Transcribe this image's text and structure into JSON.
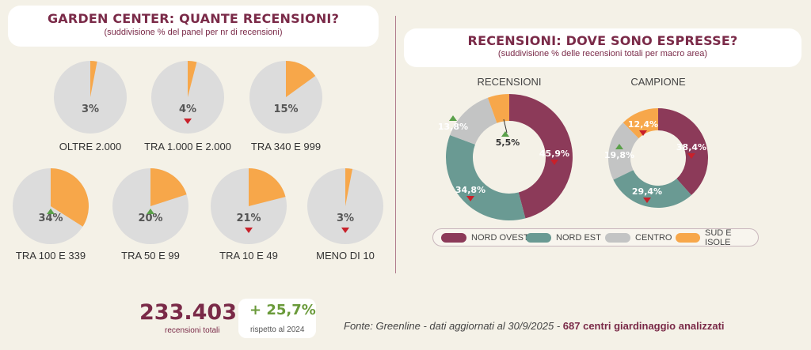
{
  "left_card": {
    "title": "GARDEN CENTER: QUANTE RECENSIONI?",
    "subtitle": "(suddivisione % del panel per nr di recensioni)"
  },
  "right_card": {
    "title": "RECENSIONI: DOVE SONO ESPRESSE?",
    "subtitle": "(suddivisione % delle recensioni totali per macro area)"
  },
  "colors": {
    "highlight": "#f7a74a",
    "pie_bg": "#dcdcdc",
    "nord_ovest": "#8c3a59",
    "nord_est": "#6a9a93",
    "centro": "#c3c4c4",
    "sud_isole": "#f7a74a",
    "up": "#5aa04a",
    "down": "#c8202a",
    "brand": "#7a2a48"
  },
  "chart_data": [
    {
      "type": "pie",
      "title": "GARDEN CENTER: QUANTE RECENSIONI?",
      "subtitle": "(suddivisione % del panel per nr di recensioni)",
      "categories": [
        "OLTRE 2.000",
        "TRA 1.000 E 2.000",
        "TRA 340 E 999",
        "TRA 100 E 339",
        "TRA 50 E 99",
        "TRA 10 E 49",
        "MENO DI 10"
      ],
      "values": [
        3,
        4,
        15,
        34,
        20,
        21,
        3
      ],
      "labels": [
        "3%",
        "4%",
        "15%",
        "34%",
        "20%",
        "21%",
        "3%"
      ],
      "trend": [
        "",
        "down",
        "",
        "up",
        "up",
        "down",
        "down"
      ]
    },
    {
      "type": "pie",
      "title": "RECENSIONI",
      "categories": [
        "NORD OVEST",
        "NORD EST",
        "CENTRO",
        "SUD E ISOLE"
      ],
      "values": [
        45.9,
        34.8,
        13.8,
        5.5
      ],
      "labels": [
        "45,9%",
        "34,8%",
        "13,8%",
        "5,5%"
      ],
      "trend": [
        "down",
        "down",
        "up",
        "up"
      ]
    },
    {
      "type": "pie",
      "title": "CAMPIONE",
      "categories": [
        "NORD OVEST",
        "NORD EST",
        "CENTRO",
        "SUD E ISOLE"
      ],
      "values": [
        38.4,
        29.4,
        19.8,
        12.4
      ],
      "labels": [
        "38,4%",
        "29,4%",
        "19,8%",
        "12,4%"
      ],
      "trend": [
        "down",
        "down",
        "up",
        "down"
      ]
    }
  ],
  "legend": [
    "NORD OVEST",
    "NORD EST",
    "CENTRO",
    "SUD E ISOLE"
  ],
  "totals": {
    "value": "233.403",
    "label": "recensioni totali",
    "growth": "+ 25,7%",
    "growth_label": "rispetto al 2024"
  },
  "source": {
    "text": "Fonte: Greenline - dati aggiornati al 30/9/2025 - ",
    "highlight": "687 centri giardinaggio analizzati"
  }
}
